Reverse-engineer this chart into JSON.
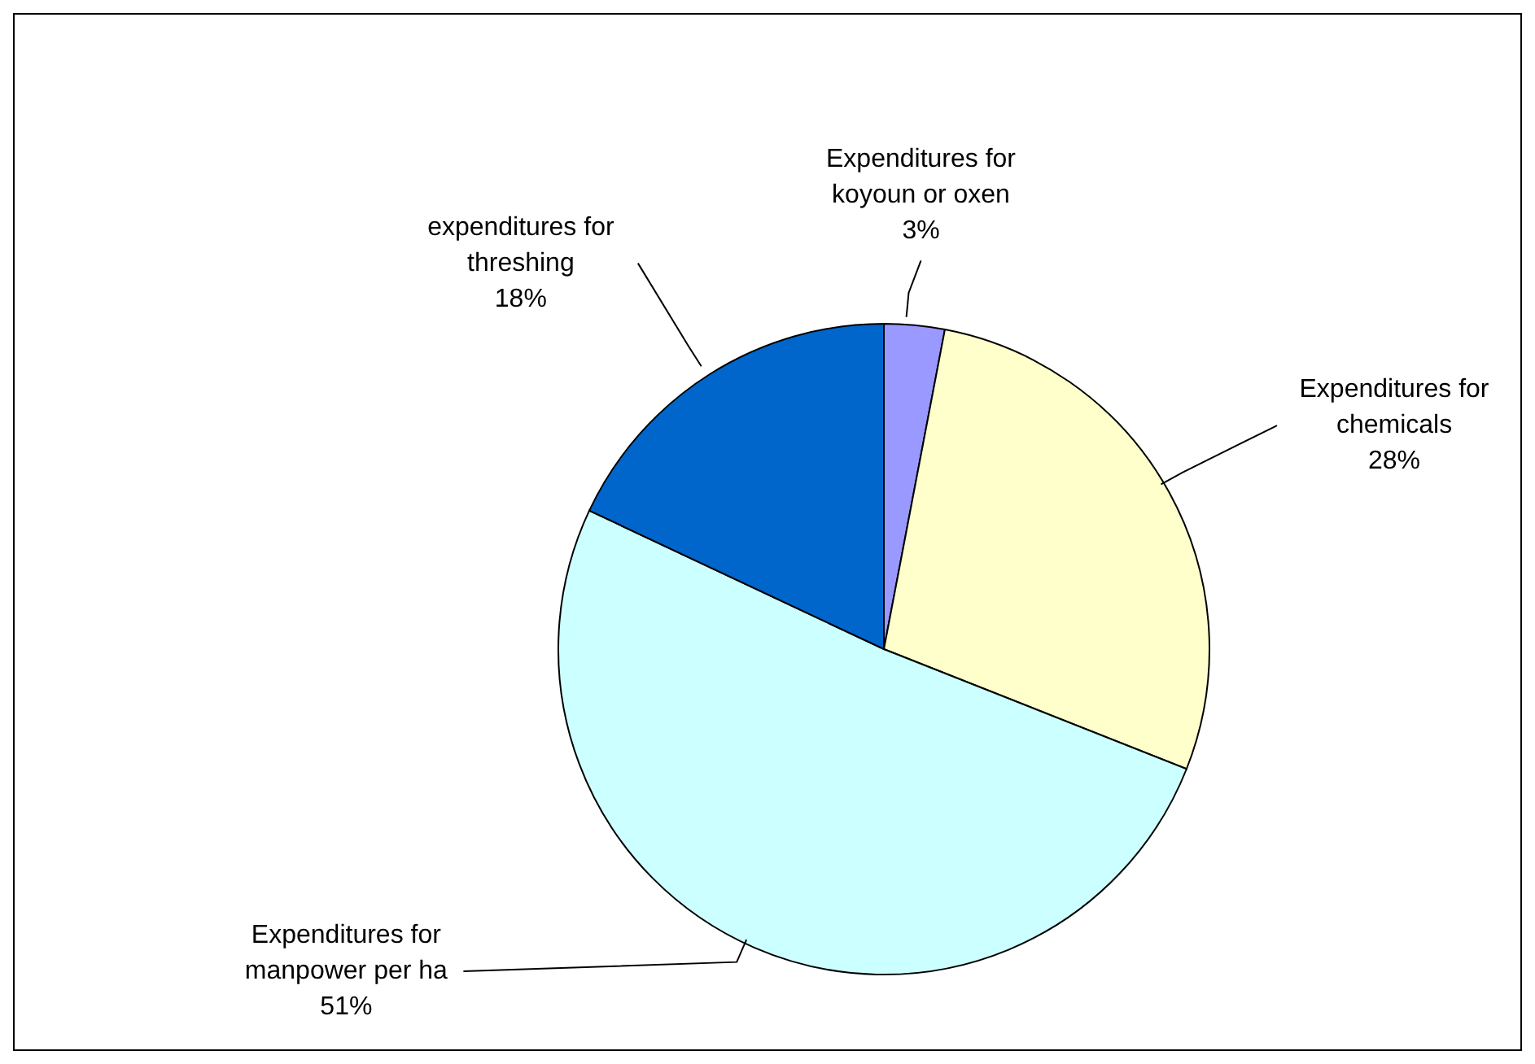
{
  "chart_data": {
    "type": "pie",
    "categories": [
      "Expenditures for koyoun or oxen",
      "Expenditures for chemicals",
      "Expenditures for manpower per ha",
      "expenditures for threshing"
    ],
    "values": [
      3,
      28,
      51,
      18
    ],
    "value_labels": [
      "3%",
      "28%",
      "51%",
      "18%"
    ],
    "colors": [
      "#9999ff",
      "#ffffcc",
      "#ccffff",
      "#0066cc"
    ],
    "legend": false
  }
}
